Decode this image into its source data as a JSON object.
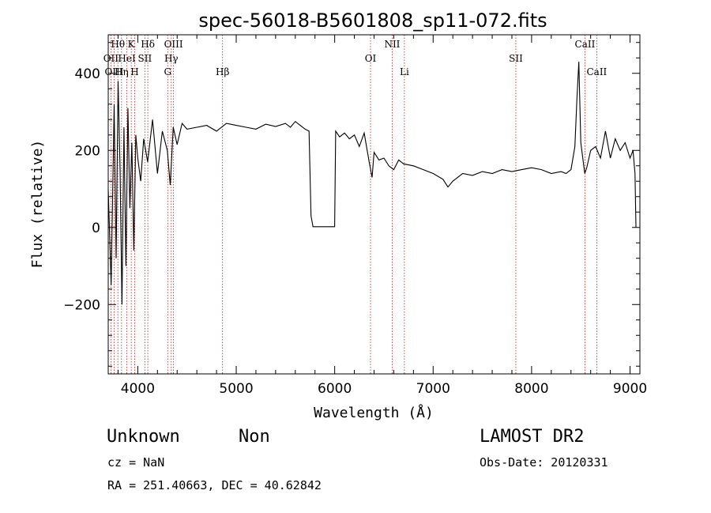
{
  "chart_data": {
    "type": "line",
    "title": "spec-56018-B5601808_sp11-072.fits",
    "xlabel": "Wavelength (Å)",
    "ylabel": "Flux (relative)",
    "xlim": [
      3700,
      9100
    ],
    "ylim": [
      -380,
      500
    ],
    "xticks": [
      4000,
      5000,
      6000,
      7000,
      8000,
      9000
    ],
    "yticks": [
      -200,
      0,
      200,
      400
    ],
    "grid": false,
    "series": [
      {
        "color": "#000000",
        "x": [
          3700,
          3730,
          3760,
          3780,
          3800,
          3820,
          3840,
          3860,
          3880,
          3900,
          3920,
          3940,
          3960,
          3980,
          4000,
          4030,
          4060,
          4100,
          4150,
          4200,
          4250,
          4300,
          4330,
          4360,
          4400,
          4450,
          4500,
          4600,
          4700,
          4800,
          4900,
          5000,
          5100,
          5200,
          5300,
          5400,
          5500,
          5550,
          5600,
          5650,
          5700,
          5740,
          5760,
          5780,
          6000,
          6010,
          6050,
          6100,
          6150,
          6200,
          6250,
          6300,
          6350,
          6380,
          6400,
          6450,
          6500,
          6550,
          6600,
          6650,
          6700,
          6800,
          6900,
          7000,
          7100,
          7150,
          7200,
          7300,
          7400,
          7500,
          7600,
          7700,
          7800,
          7900,
          8000,
          8100,
          8200,
          8300,
          8350,
          8400,
          8440,
          8460,
          8480,
          8500,
          8520,
          8540,
          8560,
          8600,
          8650,
          8700,
          8750,
          8800,
          8850,
          8900,
          8950,
          9000,
          9030,
          9050,
          9060
        ],
        "y": [
          100,
          -150,
          320,
          -80,
          380,
          150,
          -200,
          260,
          -100,
          310,
          50,
          220,
          -60,
          240,
          180,
          120,
          230,
          170,
          280,
          140,
          250,
          200,
          110,
          260,
          215,
          270,
          255,
          260,
          265,
          250,
          270,
          265,
          260,
          255,
          268,
          262,
          270,
          260,
          275,
          265,
          255,
          250,
          30,
          2,
          2,
          250,
          235,
          245,
          230,
          240,
          210,
          245,
          170,
          130,
          195,
          175,
          180,
          160,
          150,
          175,
          165,
          160,
          150,
          140,
          125,
          105,
          120,
          140,
          135,
          145,
          140,
          150,
          145,
          150,
          155,
          150,
          140,
          145,
          140,
          150,
          210,
          330,
          430,
          220,
          180,
          140,
          155,
          200,
          210,
          180,
          250,
          180,
          230,
          200,
          220,
          180,
          200,
          140,
          0
        ]
      }
    ],
    "annotations": [
      {
        "label": "Hθ",
        "x": 3798,
        "row": 1
      },
      {
        "label": "K",
        "x": 3934,
        "row": 1
      },
      {
        "label": "Hδ",
        "x": 4102,
        "row": 1
      },
      {
        "label": "OIII",
        "x": 4363,
        "row": 1
      },
      {
        "label": "NII",
        "x": 6584,
        "row": 1
      },
      {
        "label": "CaII",
        "x": 8542,
        "row": 1
      },
      {
        "label": "OII",
        "x": 3727,
        "row": 2
      },
      {
        "label": "HeI",
        "x": 3889,
        "row": 2
      },
      {
        "label": "SII",
        "x": 4072,
        "row": 2
      },
      {
        "label": "Hγ",
        "x": 4340,
        "row": 2
      },
      {
        "label": "OI",
        "x": 6364,
        "row": 2
      },
      {
        "label": "SII",
        "x": 7840,
        "row": 2
      },
      {
        "label": "OIII",
        "x": 3760,
        "row": 3
      },
      {
        "label": "Hη",
        "x": 3835,
        "row": 3
      },
      {
        "label": "H",
        "x": 3969,
        "row": 3
      },
      {
        "label": "G",
        "x": 4304,
        "row": 3
      },
      {
        "label": "Hβ",
        "x": 4861,
        "row": 3
      },
      {
        "label": "Li",
        "x": 6708,
        "row": 3
      },
      {
        "label": "CaII",
        "x": 8662,
        "row": 3
      }
    ]
  },
  "info": {
    "object_class": "Unknown",
    "object_subclass": "Non",
    "survey": "LAMOST DR2",
    "cz": "cz = NaN",
    "obs_date": "Obs-Date: 20120331",
    "coords": "RA = 251.40663, DEC =  40.62842"
  }
}
